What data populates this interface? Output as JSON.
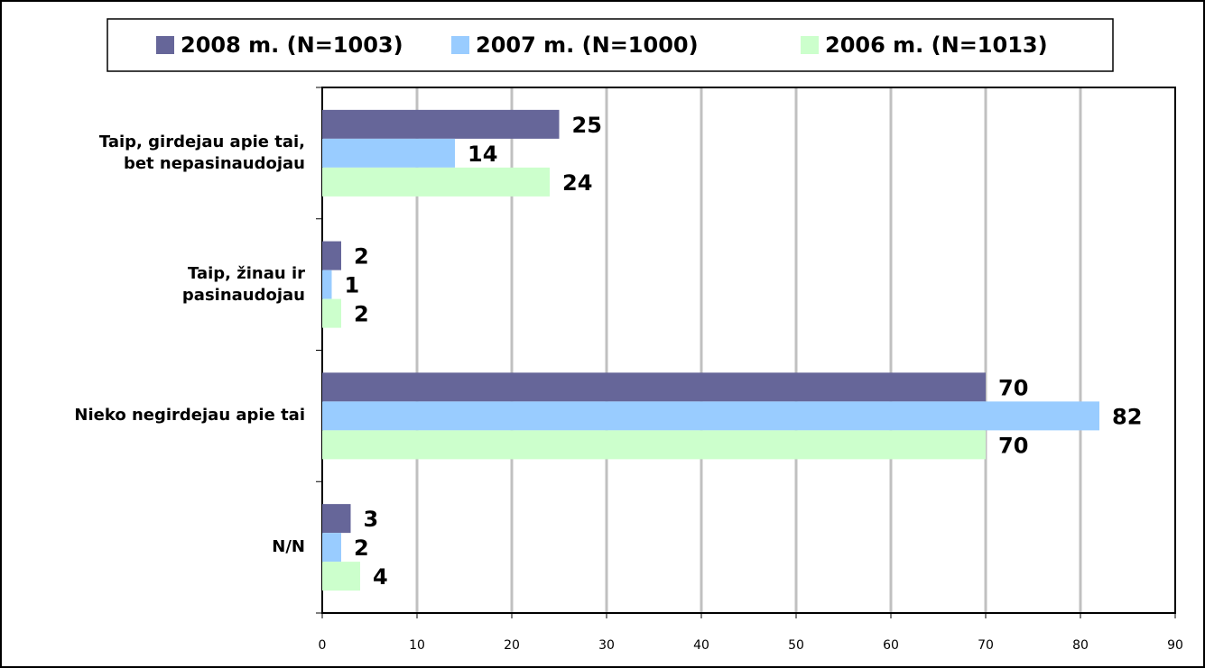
{
  "chart_data": {
    "type": "bar",
    "orientation": "horizontal",
    "categories": [
      "Taip, girdejau apie tai,\nbet nepasinaudojau",
      "Taip, žinau ir\npasinaudojau",
      "Nieko negirdejau apie tai",
      "N/N"
    ],
    "series": [
      {
        "name": "2008 m. (N=1003)",
        "color": "#666699",
        "values": [
          25,
          2,
          70,
          3
        ]
      },
      {
        "name": "2007 m. (N=1000)",
        "color": "#99ccff",
        "values": [
          14,
          1,
          82,
          2
        ]
      },
      {
        "name": "2006 m. (N=1013)",
        "color": "#ccffcc",
        "values": [
          24,
          2,
          70,
          4
        ]
      }
    ],
    "xlim": [
      0,
      90
    ],
    "xticks": [
      0,
      10,
      20,
      30,
      40,
      50,
      60,
      70,
      80,
      90
    ],
    "grid": true,
    "legend": "top"
  }
}
